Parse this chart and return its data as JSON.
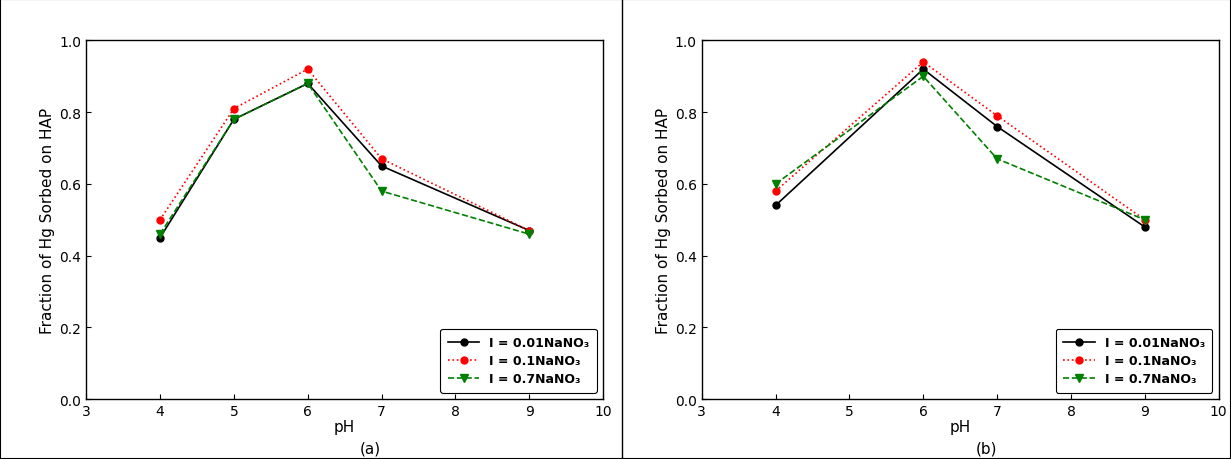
{
  "panel_a": {
    "title": "(a)",
    "xlabel": "pH",
    "ylabel": "Fraction of Hg Sorbed on HAP",
    "xlim": [
      3,
      10
    ],
    "ylim": [
      0.0,
      1.0
    ],
    "series": [
      {
        "label": "I = 0.01NaNO₃",
        "x": [
          4,
          5,
          6,
          7,
          9
        ],
        "y": [
          0.45,
          0.78,
          0.88,
          0.65,
          0.47
        ],
        "color": "black",
        "linestyle": "-",
        "marker": "o",
        "markerfacecolor": "black",
        "markersize": 5
      },
      {
        "label": "I = 0.1NaNO₃",
        "x": [
          4,
          5,
          6,
          7,
          9
        ],
        "y": [
          0.5,
          0.81,
          0.92,
          0.67,
          0.47
        ],
        "color": "red",
        "linestyle": ":",
        "marker": "o",
        "markerfacecolor": "red",
        "markersize": 5
      },
      {
        "label": "I = 0.7NaNO₃",
        "x": [
          4,
          5,
          6,
          7,
          9
        ],
        "y": [
          0.46,
          0.78,
          0.88,
          0.58,
          0.46
        ],
        "color": "green",
        "linestyle": "--",
        "marker": "v",
        "markerfacecolor": "green",
        "markersize": 6
      }
    ]
  },
  "panel_b": {
    "title": "(b)",
    "xlabel": "pH",
    "ylabel": "Fraction of Hg Sorbed on HAP",
    "xlim": [
      3,
      10
    ],
    "ylim": [
      0.0,
      1.0
    ],
    "series": [
      {
        "label": "I = 0.01NaNO₃",
        "x": [
          4,
          6,
          7,
          9
        ],
        "y": [
          0.54,
          0.92,
          0.76,
          0.48
        ],
        "color": "black",
        "linestyle": "-",
        "marker": "o",
        "markerfacecolor": "black",
        "markersize": 5
      },
      {
        "label": "I = 0.1NaNO₃",
        "x": [
          4,
          6,
          7,
          9
        ],
        "y": [
          0.58,
          0.94,
          0.79,
          0.5
        ],
        "color": "red",
        "linestyle": ":",
        "marker": "o",
        "markerfacecolor": "red",
        "markersize": 5
      },
      {
        "label": "I = 0.7NaNO₃",
        "x": [
          4,
          6,
          7,
          9
        ],
        "y": [
          0.6,
          0.9,
          0.67,
          0.5
        ],
        "color": "green",
        "linestyle": "--",
        "marker": "v",
        "markerfacecolor": "green",
        "markersize": 6
      }
    ]
  },
  "yticks": [
    0.0,
    0.2,
    0.4,
    0.6,
    0.8,
    1.0
  ],
  "xticks": [
    3,
    4,
    5,
    6,
    7,
    8,
    9,
    10
  ],
  "background_color": "white",
  "figure_facecolor": "white",
  "outer_border_color": "black",
  "label_fontsize": 11,
  "tick_fontsize": 10,
  "legend_fontsize": 9,
  "linewidth": 1.2
}
